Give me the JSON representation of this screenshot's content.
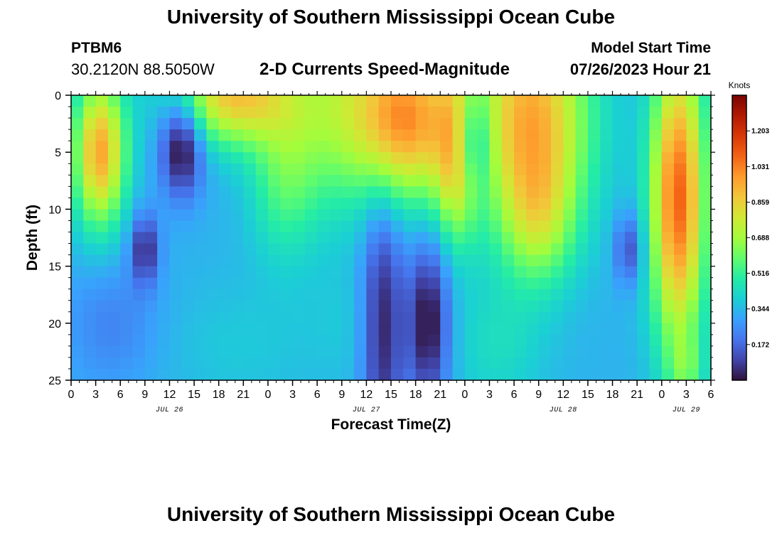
{
  "header": {
    "title": "University of Southern Mississippi Ocean Cube",
    "station_id": "PTBM6",
    "coordinates": "30.2120N  88.5050W",
    "subtitle": "2-D Currents Speed-Magnitude",
    "model_start_label": "Model Start Time",
    "model_start_value": "07/26/2023 Hour 21"
  },
  "footer": {
    "title": "University of Southern Mississippi Ocean Cube"
  },
  "colors": {
    "stops": [
      "#30123b",
      "#4145ab",
      "#4675ed",
      "#39a2fc",
      "#1bcfd4",
      "#24eca6",
      "#61fc6c",
      "#a4fc3b",
      "#d1e834",
      "#f3c63a",
      "#fe9b2d",
      "#f36315",
      "#d93806",
      "#b11901",
      "#7a0403"
    ]
  },
  "chart_data": {
    "type": "heatmap",
    "title": "2-D Currents Speed-Magnitude",
    "xlabel": "Forecast Time(Z)",
    "ylabel": "Depth (ft)",
    "x_range_hours": [
      0,
      78
    ],
    "x_step_hours": 1.5,
    "ylim": [
      0,
      25
    ],
    "y_inverted": true,
    "y_ticks": [
      0,
      5,
      10,
      15,
      20,
      25
    ],
    "x_tick_labels": [
      "0",
      "3",
      "6",
      "9",
      "12",
      "15",
      "18",
      "21",
      "0",
      "3",
      "6",
      "9",
      "12",
      "15",
      "18",
      "21",
      "0",
      "3",
      "6",
      "9",
      "12",
      "15",
      "18",
      "21",
      "0",
      "3",
      "6"
    ],
    "day_labels": [
      {
        "label": "JUL 26",
        "hour": 12
      },
      {
        "label": "JUL 27",
        "hour": 36
      },
      {
        "label": "JUL 28",
        "hour": 60
      },
      {
        "label": "JUL 29",
        "hour": 75
      }
    ],
    "colorbar": {
      "units": "Knots",
      "min": 0,
      "max": 1.375,
      "ticks": [
        0.172,
        0.344,
        0.516,
        0.688,
        0.859,
        1.031,
        1.203
      ],
      "tick_labels": [
        "0.172",
        "0.344",
        "0.516",
        "0.688",
        "0.859",
        "1.031",
        "1.203"
      ]
    },
    "blobs": [
      {
        "t": 3.5,
        "d": 5,
        "st": 2.2,
        "sd": 4.5,
        "a": 0.62
      },
      {
        "t": 13.5,
        "d": 4.5,
        "st": 1.8,
        "sd": 3.0,
        "a": -0.38
      },
      {
        "t": 9,
        "d": 13.5,
        "st": 1.2,
        "sd": 2.2,
        "a": -0.28
      },
      {
        "t": 20,
        "d": 0,
        "st": 5.0,
        "sd": 3.0,
        "a": 0.55
      },
      {
        "t": 26,
        "d": 7,
        "st": 3.0,
        "sd": 5.0,
        "a": 0.22
      },
      {
        "t": 33,
        "d": 1,
        "st": 4.5,
        "sd": 6.0,
        "a": 0.32
      },
      {
        "t": 35,
        "d": 20,
        "st": 5.0,
        "sd": 4.0,
        "a": 0.05
      },
      {
        "t": 41,
        "d": 2,
        "st": 4.0,
        "sd": 5.0,
        "a": 0.62
      },
      {
        "t": 38,
        "d": 20,
        "st": 1.8,
        "sd": 8.0,
        "a": -0.32
      },
      {
        "t": 47,
        "d": 5,
        "st": 1.8,
        "sd": 5.0,
        "a": 0.5
      },
      {
        "t": 43.5,
        "d": 20,
        "st": 1.8,
        "sd": 5.0,
        "a": -0.36
      },
      {
        "t": 48.5,
        "d": 4,
        "st": 1.8,
        "sd": 3.2,
        "a": -0.38
      },
      {
        "t": 56,
        "d": 2,
        "st": 5.0,
        "sd": 7.0,
        "a": 0.62
      },
      {
        "t": 57,
        "d": 11,
        "st": 3.0,
        "sd": 4.0,
        "a": 0.25
      },
      {
        "t": 52,
        "d": 22,
        "st": 4.0,
        "sd": 4.0,
        "a": 0.1
      },
      {
        "t": 68,
        "d": 13.5,
        "st": 1.2,
        "sd": 2.2,
        "a": -0.22
      },
      {
        "t": 74,
        "d": 9,
        "st": 2.3,
        "sd": 9.0,
        "a": 0.75
      },
      {
        "t": 75,
        "d": 24,
        "st": 1.5,
        "sd": 2.0,
        "a": 0.15
      },
      {
        "t": 5,
        "d": 20,
        "st": 4.0,
        "sd": 4.0,
        "a": -0.1
      },
      {
        "t": 20,
        "d": 22,
        "st": 6.0,
        "sd": 4.0,
        "a": 0.05
      }
    ]
  }
}
